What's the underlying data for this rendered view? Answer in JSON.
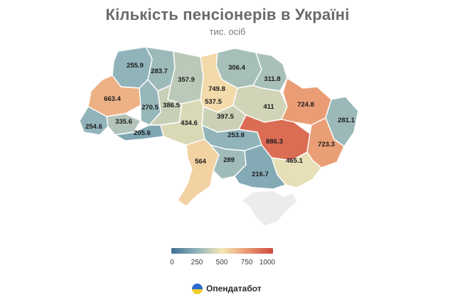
{
  "title": "Кількість пенсіонерів в Україні",
  "subtitle": "тис. осіб",
  "colors": {
    "low": "#3d6f96",
    "mid_low": "#8fb3bb",
    "mid": "#f5e6b4",
    "mid_high": "#e9956e",
    "high": "#cf4b3f",
    "no_data": "#ececec"
  },
  "legend": {
    "ticks": [
      "0",
      "250",
      "500",
      "750",
      "1000"
    ],
    "min": 0,
    "max": 1000
  },
  "brand": {
    "name": "Опендатабот",
    "icon": "opendatabot-logo-icon"
  },
  "regions": [
    {
      "value": "255.9",
      "v": 255.9
    },
    {
      "value": "283.7",
      "v": 283.7
    },
    {
      "value": "357.9",
      "v": 357.9
    },
    {
      "value": "306.4",
      "v": 306.4
    },
    {
      "value": "311.8",
      "v": 311.8
    },
    {
      "value": "749.8",
      "v": 749.8
    },
    {
      "value": "537.5",
      "v": 537.5
    },
    {
      "value": "663.4",
      "v": 663.4
    },
    {
      "value": "270.5",
      "v": 270.5
    },
    {
      "value": "386.5",
      "v": 386.5
    },
    {
      "value": "397.5",
      "v": 397.5
    },
    {
      "value": "411",
      "v": 411
    },
    {
      "value": "724.8",
      "v": 724.8
    },
    {
      "value": "281.1",
      "v": 281.1
    },
    {
      "value": "254.6",
      "v": 254.6
    },
    {
      "value": "335.6",
      "v": 335.6
    },
    {
      "value": "205.6",
      "v": 205.6
    },
    {
      "value": "434.6",
      "v": 434.6
    },
    {
      "value": "253.8",
      "v": 253.8
    },
    {
      "value": "886.3",
      "v": 886.3
    },
    {
      "value": "723.3",
      "v": 723.3
    },
    {
      "value": "564",
      "v": 564
    },
    {
      "value": "289",
      "v": 289
    },
    {
      "value": "465.1",
      "v": 465.1
    },
    {
      "value": "216.7",
      "v": 216.7
    },
    {
      "value": "",
      "v": null
    }
  ]
}
